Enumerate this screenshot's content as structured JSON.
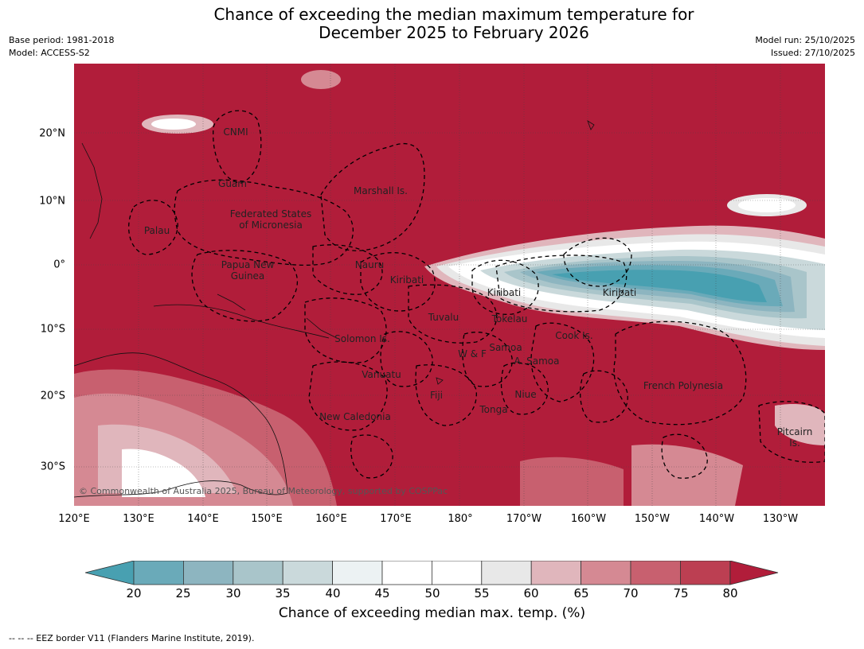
{
  "header": {
    "title_line1": "Chance of exceeding the median maximum temperature for",
    "title_line2": "December 2025 to February 2026",
    "base_period": "Base period: 1981-2018",
    "model": "Model: ACCESS-S2",
    "model_run": "Model run: 25/10/2025",
    "issued": "Issued: 27/10/2025"
  },
  "map": {
    "lat_labels": [
      "20°N",
      "10°N",
      "0°",
      "10°S",
      "20°S",
      "30°S"
    ],
    "lon_labels": [
      "120°E",
      "130°E",
      "140°E",
      "150°E",
      "160°E",
      "170°E",
      "180°",
      "170°W",
      "160°W",
      "150°W",
      "140°W",
      "130°W"
    ],
    "regions": {
      "cnmi": "CNMI",
      "guam": "Guam",
      "marshall": "Marshall Is.",
      "fsm_1": "Federated States",
      "fsm_2": "of Micronesia",
      "palau": "Palau",
      "png_1": "Papua New",
      "png_2": "Guinea",
      "nauru": "Nauru",
      "kiribati_west": "Kiribati",
      "kiribati_central": "Kiribati",
      "kiribati_east": "Kiribati",
      "tuvalu": "Tuvalu",
      "tokelau": "Tokelau",
      "cook": "Cook Is.",
      "solomon": "Solomon Is.",
      "wf": "W & F",
      "samoa": "Samoa",
      "a_samoa": "A. Samoa",
      "vanuatu": "Vanuatu",
      "fiji": "Fiji",
      "niue": "Niue",
      "french_polynesia": "French Polynesia",
      "tonga": "Tonga",
      "new_caledonia": "New Caledonia",
      "pitcairn_1": "Pitcairn",
      "pitcairn_2": "Is."
    },
    "copyright": "© Commonwealth of Australia 2025, Bureau of Meteorology, supported by COSPPac"
  },
  "colorbar": {
    "title": "Chance of exceeding median max. temp. (%)",
    "ticks": [
      "20",
      "25",
      "30",
      "35",
      "40",
      "45",
      "50",
      "55",
      "60",
      "65",
      "70",
      "75",
      "80"
    ],
    "colors": [
      "#6aaab9",
      "#8db5c0",
      "#a9c5ca",
      "#cad9db",
      "#ecf2f3",
      "#ffffff",
      "#ffffff",
      "#e8e8e8",
      "#e0b6bc",
      "#d58993",
      "#c8606f",
      "#bc3f52"
    ],
    "under_color": "#48a0b1",
    "over_color": "#b11d3a"
  },
  "footnote": "--  --  -- EEZ border V11 (Flanders Marine Institute, 2019)."
}
